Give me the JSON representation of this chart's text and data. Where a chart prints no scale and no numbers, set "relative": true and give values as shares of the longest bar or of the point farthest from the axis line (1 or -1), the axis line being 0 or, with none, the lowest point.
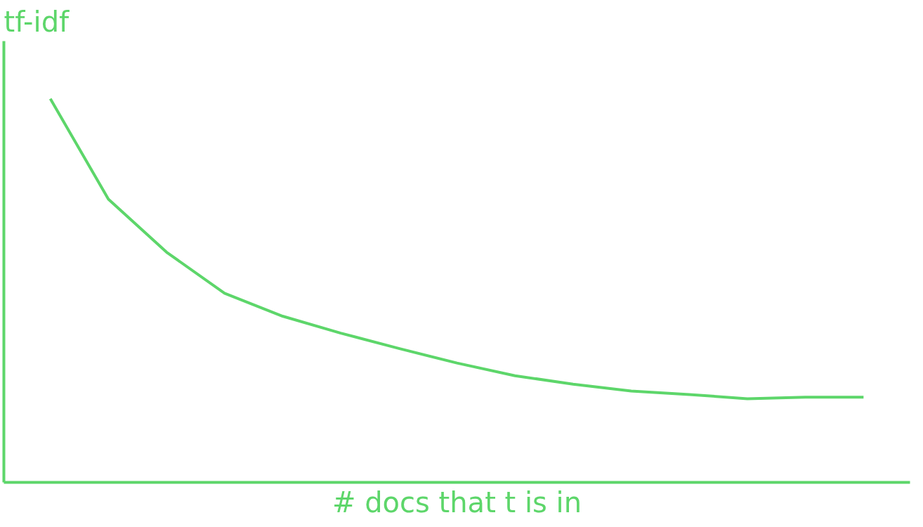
{
  "chart_data": {
    "type": "line",
    "relative": true,
    "ylabel": "tf-idf",
    "xlabel": "# docs that t is in",
    "categories": [
      null,
      null,
      null,
      null,
      null,
      null,
      null,
      null,
      null,
      null,
      null,
      null,
      null,
      null,
      null
    ],
    "series": [
      {
        "color": "#5dd66a",
        "values": [
          1.0,
          0.738,
          0.6,
          0.493,
          0.433,
          0.389,
          0.349,
          0.311,
          0.278,
          0.256,
          0.238,
          0.229,
          0.218,
          0.222,
          0.222
        ]
      }
    ],
    "marker": "none",
    "line_style": "solid"
  }
}
